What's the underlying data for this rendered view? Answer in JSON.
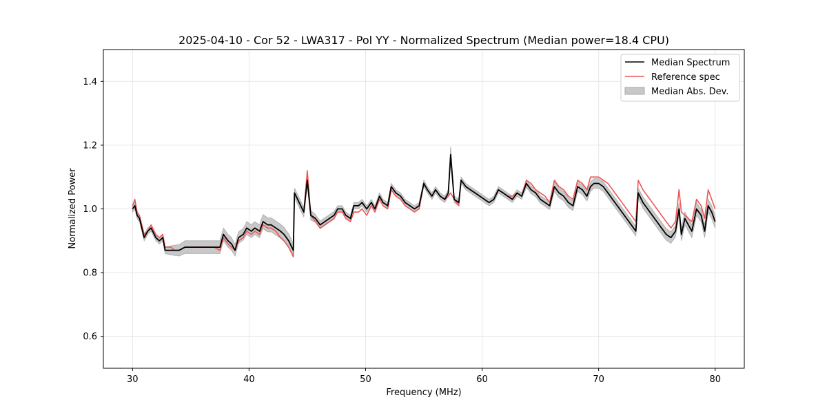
{
  "chart_data": {
    "type": "line",
    "title": "2025-04-10 - Cor 52 - LWA317 - Pol YY - Normalized Spectrum (Median power=18.4 CPU)",
    "xlabel": "Frequency (MHz)",
    "ylabel": "Normalized Power",
    "xlim": [
      27.5,
      82.5
    ],
    "ylim": [
      0.5,
      1.5
    ],
    "xticks": [
      30,
      40,
      50,
      60,
      70,
      80
    ],
    "xtick_labels": [
      "30",
      "40",
      "50",
      "60",
      "70",
      "80"
    ],
    "yticks": [
      0.6,
      0.8,
      1.0,
      1.2,
      1.4
    ],
    "ytick_labels": [
      "0.6",
      "0.8",
      "1.0",
      "1.2",
      "1.4"
    ],
    "grid": true,
    "legend_position": "top-right",
    "colors": {
      "median": "#000000",
      "reference": "#ee5555",
      "mad": "#c8c8c8",
      "mad_edge": "#a8a8a8"
    },
    "series": [
      {
        "name": "Median Spectrum",
        "x": [
          30.0,
          30.2,
          30.4,
          30.6,
          30.8,
          31.0,
          31.3,
          31.6,
          32.0,
          32.3,
          32.6,
          32.8,
          33.0,
          33.3,
          33.6,
          34.0,
          34.5,
          35.0,
          35.5,
          36.0,
          36.5,
          37.0,
          37.5,
          37.8,
          38.2,
          38.5,
          38.8,
          39.1,
          39.5,
          39.8,
          40.2,
          40.5,
          40.9,
          41.2,
          41.6,
          41.9,
          42.3,
          42.7,
          43.0,
          43.4,
          43.8,
          43.9,
          44.3,
          44.7,
          45.0,
          45.3,
          45.7,
          46.1,
          46.5,
          46.9,
          47.3,
          47.6,
          48.0,
          48.3,
          48.7,
          49.0,
          49.4,
          49.7,
          50.1,
          50.5,
          50.8,
          51.2,
          51.5,
          51.9,
          52.2,
          52.6,
          53.0,
          53.4,
          53.8,
          54.2,
          54.6,
          55.0,
          55.3,
          55.7,
          56.0,
          56.4,
          56.8,
          57.1,
          57.3,
          57.6,
          58.0,
          58.2,
          58.6,
          59.0,
          59.4,
          59.8,
          60.2,
          60.6,
          61.0,
          61.4,
          61.8,
          62.2,
          62.6,
          63.0,
          63.4,
          63.8,
          64.2,
          64.6,
          65.0,
          65.4,
          65.8,
          66.2,
          66.6,
          67.0,
          67.4,
          67.8,
          68.2,
          68.6,
          69.0,
          69.3,
          69.6,
          70.0,
          70.4,
          70.8,
          71.2,
          71.6,
          72.0,
          72.4,
          72.8,
          73.2,
          73.4,
          73.8,
          74.2,
          74.6,
          75.0,
          75.4,
          75.8,
          76.2,
          76.6,
          76.9,
          77.1,
          77.4,
          77.7,
          78.0,
          78.4,
          78.8,
          79.1,
          79.4,
          79.7,
          80.0
        ],
        "values": [
          1.0,
          1.01,
          0.98,
          0.97,
          0.94,
          0.91,
          0.93,
          0.94,
          0.91,
          0.9,
          0.91,
          0.87,
          0.87,
          0.87,
          0.87,
          0.87,
          0.88,
          0.88,
          0.88,
          0.88,
          0.88,
          0.88,
          0.88,
          0.92,
          0.9,
          0.89,
          0.87,
          0.91,
          0.92,
          0.94,
          0.93,
          0.94,
          0.93,
          0.96,
          0.95,
          0.95,
          0.94,
          0.93,
          0.92,
          0.9,
          0.87,
          1.05,
          1.02,
          0.99,
          1.09,
          0.98,
          0.97,
          0.95,
          0.96,
          0.97,
          0.98,
          1.0,
          1.0,
          0.98,
          0.97,
          1.01,
          1.01,
          1.02,
          1.0,
          1.02,
          1.0,
          1.04,
          1.02,
          1.01,
          1.07,
          1.05,
          1.04,
          1.02,
          1.01,
          1.0,
          1.01,
          1.08,
          1.06,
          1.04,
          1.06,
          1.04,
          1.03,
          1.05,
          1.17,
          1.03,
          1.02,
          1.09,
          1.07,
          1.06,
          1.05,
          1.04,
          1.03,
          1.02,
          1.03,
          1.06,
          1.05,
          1.04,
          1.03,
          1.05,
          1.04,
          1.08,
          1.06,
          1.05,
          1.03,
          1.02,
          1.01,
          1.07,
          1.05,
          1.04,
          1.02,
          1.01,
          1.07,
          1.06,
          1.04,
          1.07,
          1.08,
          1.08,
          1.07,
          1.05,
          1.03,
          1.01,
          0.99,
          0.97,
          0.95,
          0.93,
          1.05,
          1.02,
          1.0,
          0.98,
          0.96,
          0.94,
          0.92,
          0.91,
          0.93,
          1.0,
          0.92,
          0.97,
          0.95,
          0.93,
          1.0,
          0.98,
          0.93,
          1.01,
          0.99,
          0.96
        ]
      },
      {
        "name": "Reference spec",
        "x": [
          30.0,
          30.2,
          30.4,
          30.6,
          30.8,
          31.0,
          31.3,
          31.6,
          32.0,
          32.3,
          32.6,
          32.8,
          33.0,
          33.3,
          33.6,
          34.0,
          34.5,
          35.0,
          35.5,
          36.0,
          36.5,
          37.0,
          37.5,
          37.8,
          38.2,
          38.5,
          38.8,
          39.1,
          39.5,
          39.8,
          40.2,
          40.5,
          40.9,
          41.2,
          41.6,
          41.9,
          42.3,
          42.7,
          43.0,
          43.4,
          43.8,
          43.9,
          44.3,
          44.7,
          45.0,
          45.3,
          45.7,
          46.1,
          46.5,
          46.9,
          47.3,
          47.6,
          48.0,
          48.3,
          48.7,
          49.0,
          49.4,
          49.7,
          50.1,
          50.5,
          50.8,
          51.2,
          51.5,
          51.9,
          52.2,
          52.6,
          53.0,
          53.4,
          53.8,
          54.2,
          54.6,
          55.0,
          55.3,
          55.7,
          56.0,
          56.4,
          56.8,
          57.1,
          57.3,
          57.6,
          58.0,
          58.2,
          58.6,
          59.0,
          59.4,
          59.8,
          60.2,
          60.6,
          61.0,
          61.4,
          61.8,
          62.2,
          62.6,
          63.0,
          63.4,
          63.8,
          64.2,
          64.6,
          65.0,
          65.4,
          65.8,
          66.2,
          66.6,
          67.0,
          67.4,
          67.8,
          68.2,
          68.6,
          69.0,
          69.3,
          69.6,
          70.0,
          70.4,
          70.8,
          71.2,
          71.6,
          72.0,
          72.4,
          72.8,
          73.2,
          73.4,
          73.8,
          74.2,
          74.6,
          75.0,
          75.4,
          75.8,
          76.2,
          76.6,
          76.9,
          77.1,
          77.4,
          77.7,
          78.0,
          78.4,
          78.8,
          79.1,
          79.4,
          79.7,
          80.0
        ],
        "values": [
          1.01,
          1.03,
          0.99,
          0.98,
          0.95,
          0.92,
          0.93,
          0.95,
          0.92,
          0.91,
          0.92,
          0.88,
          0.88,
          0.88,
          0.87,
          0.87,
          0.88,
          0.88,
          0.88,
          0.88,
          0.88,
          0.88,
          0.87,
          0.91,
          0.89,
          0.88,
          0.87,
          0.9,
          0.91,
          0.93,
          0.92,
          0.93,
          0.92,
          0.95,
          0.94,
          0.94,
          0.93,
          0.91,
          0.9,
          0.88,
          0.85,
          1.05,
          1.02,
          0.99,
          1.12,
          0.98,
          0.96,
          0.94,
          0.95,
          0.96,
          0.97,
          0.99,
          0.99,
          0.97,
          0.96,
          0.99,
          0.99,
          1.0,
          0.98,
          1.01,
          0.99,
          1.03,
          1.01,
          1.0,
          1.06,
          1.04,
          1.03,
          1.01,
          1.0,
          0.99,
          1.0,
          1.08,
          1.06,
          1.04,
          1.06,
          1.04,
          1.03,
          1.04,
          1.05,
          1.03,
          1.01,
          1.09,
          1.07,
          1.06,
          1.05,
          1.04,
          1.03,
          1.02,
          1.03,
          1.06,
          1.05,
          1.04,
          1.04,
          1.05,
          1.04,
          1.09,
          1.08,
          1.06,
          1.05,
          1.04,
          1.02,
          1.09,
          1.07,
          1.06,
          1.04,
          1.03,
          1.09,
          1.08,
          1.06,
          1.1,
          1.1,
          1.1,
          1.09,
          1.08,
          1.06,
          1.04,
          1.02,
          1.0,
          0.98,
          0.96,
          1.09,
          1.06,
          1.04,
          1.02,
          1.0,
          0.98,
          0.96,
          0.94,
          0.96,
          1.06,
          0.99,
          0.98,
          0.97,
          0.96,
          1.03,
          1.01,
          0.97,
          1.06,
          1.03,
          1.0
        ]
      },
      {
        "name": "Median Abs. Dev.",
        "values_half_width": [
          0.01,
          0.01,
          0.01,
          0.01,
          0.01,
          0.01,
          0.01,
          0.01,
          0.01,
          0.01,
          0.01,
          0.01,
          0.012,
          0.014,
          0.016,
          0.018,
          0.02,
          0.02,
          0.02,
          0.02,
          0.02,
          0.02,
          0.02,
          0.02,
          0.02,
          0.02,
          0.018,
          0.018,
          0.018,
          0.02,
          0.02,
          0.02,
          0.02,
          0.022,
          0.022,
          0.022,
          0.022,
          0.022,
          0.022,
          0.022,
          0.022,
          0.015,
          0.015,
          0.015,
          0.015,
          0.015,
          0.012,
          0.012,
          0.012,
          0.012,
          0.012,
          0.01,
          0.01,
          0.01,
          0.01,
          0.01,
          0.01,
          0.01,
          0.01,
          0.01,
          0.01,
          0.01,
          0.01,
          0.01,
          0.01,
          0.01,
          0.01,
          0.01,
          0.01,
          0.01,
          0.01,
          0.01,
          0.01,
          0.01,
          0.01,
          0.01,
          0.01,
          0.01,
          0.025,
          0.01,
          0.01,
          0.01,
          0.01,
          0.01,
          0.01,
          0.01,
          0.01,
          0.01,
          0.01,
          0.01,
          0.01,
          0.01,
          0.01,
          0.01,
          0.01,
          0.012,
          0.012,
          0.012,
          0.012,
          0.012,
          0.012,
          0.015,
          0.015,
          0.015,
          0.015,
          0.015,
          0.015,
          0.015,
          0.015,
          0.015,
          0.015,
          0.015,
          0.015,
          0.015,
          0.015,
          0.015,
          0.015,
          0.015,
          0.015,
          0.015,
          0.015,
          0.018,
          0.018,
          0.018,
          0.018,
          0.018,
          0.018,
          0.018,
          0.018,
          0.02,
          0.02,
          0.02,
          0.02,
          0.02,
          0.02,
          0.02,
          0.02,
          0.02,
          0.02,
          0.02
        ]
      }
    ],
    "legend": [
      "Median Spectrum",
      "Reference spec",
      "Median Abs. Dev."
    ]
  }
}
